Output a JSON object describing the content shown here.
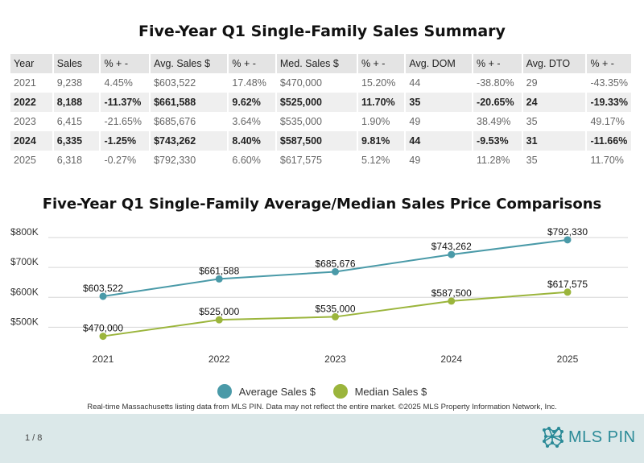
{
  "title": "Five-Year Q1 Single-Family Sales Summary",
  "table": {
    "headers": [
      "Year",
      "Sales",
      "% + -",
      "Avg. Sales $",
      "% + -",
      "Med. Sales $",
      "% + -",
      "Avg. DOM",
      "% + -",
      "Avg. DTO",
      "% + -"
    ],
    "rows": [
      [
        "2021",
        "9,238",
        "4.45%",
        "$603,522",
        "17.48%",
        "$470,000",
        "15.20%",
        "44",
        "-38.80%",
        "29",
        "-43.35%"
      ],
      [
        "2022",
        "8,188",
        "-11.37%",
        "$661,588",
        "9.62%",
        "$525,000",
        "11.70%",
        "35",
        "-20.65%",
        "24",
        "-19.33%"
      ],
      [
        "2023",
        "6,415",
        "-21.65%",
        "$685,676",
        "3.64%",
        "$535,000",
        "1.90%",
        "49",
        "38.49%",
        "35",
        "49.17%"
      ],
      [
        "2024",
        "6,335",
        "-1.25%",
        "$743,262",
        "8.40%",
        "$587,500",
        "9.81%",
        "44",
        "-9.53%",
        "31",
        "-11.66%"
      ],
      [
        "2025",
        "6,318",
        "-0.27%",
        "$792,330",
        "6.60%",
        "$617,575",
        "5.12%",
        "49",
        "11.28%",
        "35",
        "11.70%"
      ]
    ]
  },
  "chart_data": {
    "type": "line",
    "title": "Five-Year Q1 Single-Family Average/Median Sales Price Comparisons",
    "x": [
      "2021",
      "2022",
      "2023",
      "2024",
      "2025"
    ],
    "ylim": [
      450000,
      800000
    ],
    "yticks": [
      500000,
      600000,
      700000,
      800000
    ],
    "ytick_labels": [
      "$500K",
      "$600K",
      "$700K",
      "$800K"
    ],
    "grid": true,
    "legend": "bottom",
    "series": [
      {
        "name": "Average Sales $",
        "color": "#4a9aa8",
        "values": [
          603522,
          661588,
          685676,
          743262,
          792330
        ],
        "labels": [
          "$603,522",
          "$661,588",
          "$685,676",
          "$743,262",
          "$792,330"
        ]
      },
      {
        "name": "Median Sales $",
        "color": "#9bb53c",
        "values": [
          470000,
          525000,
          535000,
          587500,
          617575
        ],
        "labels": [
          "$470,000",
          "$525,000",
          "$535,000",
          "$587,500",
          "$617,575"
        ]
      }
    ]
  },
  "footnote": "Real-time Massachusetts listing data from MLS PIN. Data may not reflect the entire market. ©2025 MLS Property Information Network, Inc.",
  "footer": {
    "page": "1 / 8",
    "logo_text": "MLS PIN",
    "logo_icon": "mls-pin-network-icon"
  }
}
